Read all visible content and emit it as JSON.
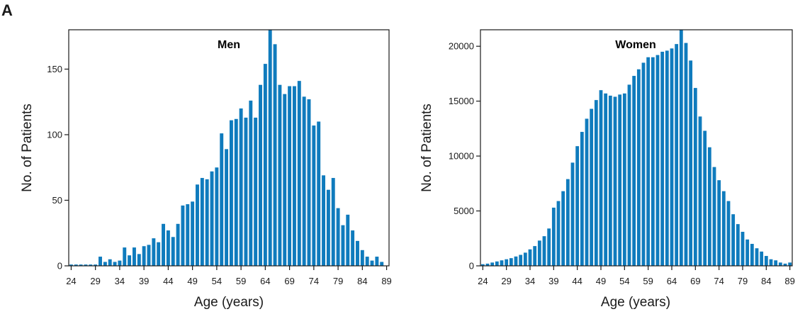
{
  "panel_label": "A",
  "colors": {
    "bar": "#0f7bbd",
    "axis": "#1a1a1a",
    "background": "#ffffff"
  },
  "chart_data": [
    {
      "type": "bar",
      "title": "Men",
      "xlabel": "Age (years)",
      "ylabel": "No. of Patients",
      "xlim": [
        24,
        89
      ],
      "ylim": [
        0,
        180
      ],
      "yticks": [
        0,
        50,
        100,
        150
      ],
      "xticks": [
        24,
        29,
        34,
        39,
        44,
        49,
        54,
        59,
        64,
        69,
        74,
        79,
        84,
        89
      ],
      "grid": false,
      "legend": "none",
      "categories": [
        24,
        25,
        26,
        27,
        28,
        29,
        30,
        31,
        32,
        33,
        34,
        35,
        36,
        37,
        38,
        39,
        40,
        41,
        42,
        43,
        44,
        45,
        46,
        47,
        48,
        49,
        50,
        51,
        52,
        53,
        54,
        55,
        56,
        57,
        58,
        59,
        60,
        61,
        62,
        63,
        64,
        65,
        66,
        67,
        68,
        69,
        70,
        71,
        72,
        73,
        74,
        75,
        76,
        77,
        78,
        79,
        80,
        81,
        82,
        83,
        84,
        85,
        86,
        87,
        88,
        89
      ],
      "values": [
        1,
        1,
        1,
        1,
        1,
        1,
        7,
        3,
        5,
        3,
        4,
        14,
        8,
        14,
        9,
        15,
        16,
        21,
        18,
        32,
        27,
        22,
        32,
        46,
        47,
        49,
        62,
        67,
        66,
        72,
        75,
        101,
        89,
        111,
        112,
        120,
        113,
        126,
        113,
        138,
        154,
        180,
        169,
        138,
        131,
        137,
        137,
        141,
        129,
        127,
        107,
        110,
        69,
        58,
        67,
        44,
        31,
        39,
        27,
        19,
        12,
        7,
        4,
        7,
        3,
        0
      ]
    },
    {
      "type": "bar",
      "title": "Women",
      "xlabel": "Age (years)",
      "ylabel": "No. of Patients",
      "xlim": [
        24,
        89
      ],
      "ylim": [
        0,
        21500
      ],
      "yticks": [
        0,
        5000,
        10000,
        15000,
        20000
      ],
      "xticks": [
        24,
        29,
        34,
        39,
        44,
        49,
        54,
        59,
        64,
        69,
        74,
        79,
        84,
        89
      ],
      "grid": false,
      "legend": "none",
      "categories": [
        24,
        25,
        26,
        27,
        28,
        29,
        30,
        31,
        32,
        33,
        34,
        35,
        36,
        37,
        38,
        39,
        40,
        41,
        42,
        43,
        44,
        45,
        46,
        47,
        48,
        49,
        50,
        51,
        52,
        53,
        54,
        55,
        56,
        57,
        58,
        59,
        60,
        61,
        62,
        63,
        64,
        65,
        66,
        67,
        68,
        69,
        70,
        71,
        72,
        73,
        74,
        75,
        76,
        77,
        78,
        79,
        80,
        81,
        82,
        83,
        84,
        85,
        86,
        87,
        88,
        89
      ],
      "values": [
        150,
        200,
        300,
        400,
        500,
        600,
        700,
        850,
        1000,
        1200,
        1500,
        1800,
        2300,
        2700,
        3400,
        5300,
        5900,
        6800,
        7900,
        9400,
        10900,
        12200,
        13400,
        14300,
        15100,
        16000,
        15700,
        15500,
        15400,
        15600,
        15700,
        16500,
        17300,
        17900,
        18500,
        19000,
        19000,
        19200,
        19500,
        19600,
        19800,
        20200,
        21500,
        20300,
        18700,
        16200,
        13600,
        12300,
        10800,
        9000,
        7800,
        6800,
        5900,
        4700,
        3800,
        3100,
        2400,
        2000,
        1600,
        1300,
        900,
        600,
        500,
        300,
        200,
        300
      ]
    }
  ]
}
